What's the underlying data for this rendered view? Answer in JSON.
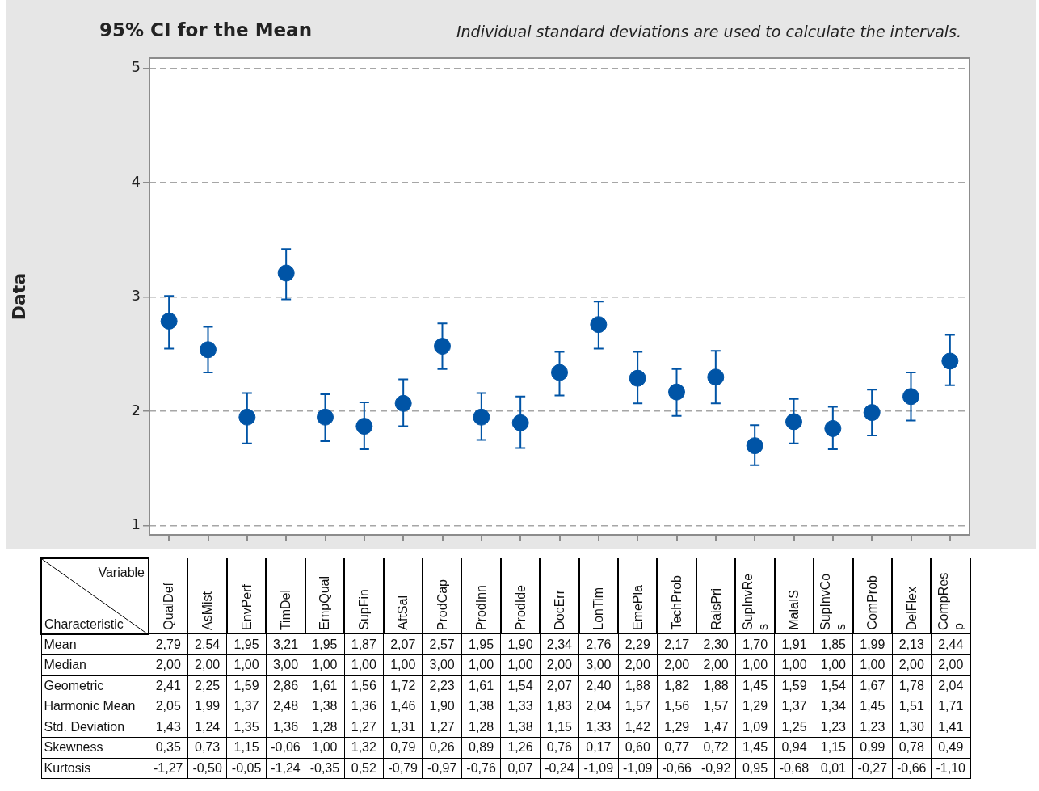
{
  "chart_data": [
    {
      "type": "scatter",
      "title": "95% CI for the Mean",
      "subtitle": "Individual standard deviations are used to calculate the intervals.",
      "ylabel": "Data",
      "categories": [
        null,
        null,
        null,
        null,
        null,
        null,
        null,
        null,
        null,
        null,
        null,
        null,
        null,
        null,
        null,
        null,
        null,
        null,
        null,
        null,
        null
      ],
      "series": [
        {
          "color": "#0054a6",
          "values": [
            2.79,
            2.54,
            1.95,
            3.21,
            1.95,
            1.87,
            2.07,
            2.57,
            1.95,
            1.9,
            2.34,
            2.76,
            2.29,
            2.17,
            2.3,
            1.7,
            1.91,
            1.85,
            1.99,
            2.13,
            2.44
          ],
          "errors": [
            [
              2.55,
              3.01
            ],
            [
              2.34,
              2.74
            ],
            [
              1.72,
              2.16
            ],
            [
              2.98,
              3.42
            ],
            [
              1.74,
              2.15
            ],
            [
              1.67,
              2.08
            ],
            [
              1.87,
              2.28
            ],
            [
              2.37,
              2.77
            ],
            [
              1.75,
              2.16
            ],
            [
              1.68,
              2.13
            ],
            [
              2.14,
              2.52
            ],
            [
              2.55,
              2.96
            ],
            [
              2.07,
              2.52
            ],
            [
              1.96,
              2.37
            ],
            [
              2.07,
              2.53
            ],
            [
              1.53,
              1.88
            ],
            [
              1.72,
              2.11
            ],
            [
              1.67,
              2.04
            ],
            [
              1.79,
              2.19
            ],
            [
              1.92,
              2.34
            ],
            [
              2.23,
              2.67
            ]
          ]
        }
      ],
      "ylim": [
        0.92,
        5.09
      ],
      "yticks": [
        1,
        2,
        3,
        4,
        5
      ],
      "grid": "y",
      "marker": "circle",
      "tick_labels": "y"
    },
    {
      "type": "other",
      "xlabel": "Variable",
      "ylabel": "Characteristic",
      "categories": [
        "QualDef",
        "AsMist",
        "EnvPerf",
        "TimDel",
        "EmpQual",
        "SupFin",
        "AftSal",
        "ProdCap",
        "ProdInn",
        "ProdIde",
        "DocErr",
        "LonTim",
        "EmePla",
        "TechProb",
        "RaisPri",
        "SupInvRes",
        "MalaIS",
        "SupInvCos",
        "ComProb",
        "DelFlex",
        "CompResp"
      ],
      "series": [
        {
          "name": "Mean",
          "values": [
            2.79,
            2.54,
            1.95,
            3.21,
            1.95,
            1.87,
            2.07,
            2.57,
            1.95,
            1.9,
            2.34,
            2.76,
            2.29,
            2.17,
            2.3,
            1.7,
            1.91,
            1.85,
            1.99,
            2.13,
            2.44
          ],
          "value_labels": [
            "2,79",
            "2,54",
            "1,95",
            "3,21",
            "1,95",
            "1,87",
            "2,07",
            "2,57",
            "1,95",
            "1,90",
            "2,34",
            "2,76",
            "2,29",
            "2,17",
            "2,30",
            "1,70",
            "1,91",
            "1,85",
            "1,99",
            "2,13",
            "2,44"
          ]
        },
        {
          "name": "Median",
          "values": [
            2,
            2,
            1,
            3,
            1,
            1,
            1,
            3,
            1,
            1,
            2,
            3,
            2,
            2,
            2,
            1,
            1,
            1,
            1,
            2,
            2
          ],
          "value_labels": [
            "2,00",
            "2,00",
            "1,00",
            "3,00",
            "1,00",
            "1,00",
            "1,00",
            "3,00",
            "1,00",
            "1,00",
            "2,00",
            "3,00",
            "2,00",
            "2,00",
            "2,00",
            "1,00",
            "1,00",
            "1,00",
            "1,00",
            "2,00",
            "2,00"
          ]
        },
        {
          "name": "Geometric",
          "values": [
            2.41,
            2.25,
            1.59,
            2.86,
            1.61,
            1.56,
            1.72,
            2.23,
            1.61,
            1.54,
            2.07,
            2.4,
            1.88,
            1.82,
            1.88,
            1.45,
            1.59,
            1.54,
            1.67,
            1.78,
            2.04
          ],
          "value_labels": [
            "2,41",
            "2,25",
            "1,59",
            "2,86",
            "1,61",
            "1,56",
            "1,72",
            "2,23",
            "1,61",
            "1,54",
            "2,07",
            "2,40",
            "1,88",
            "1,82",
            "1,88",
            "1,45",
            "1,59",
            "1,54",
            "1,67",
            "1,78",
            "2,04"
          ]
        },
        {
          "name": "Harmonic Mean",
          "values": [
            2.05,
            1.99,
            1.37,
            2.48,
            1.38,
            1.36,
            1.46,
            1.9,
            1.38,
            1.33,
            1.83,
            2.04,
            1.57,
            1.56,
            1.57,
            1.29,
            1.37,
            1.34,
            1.45,
            1.51,
            1.71
          ],
          "value_labels": [
            "2,05",
            "1,99",
            "1,37",
            "2,48",
            "1,38",
            "1,36",
            "1,46",
            "1,90",
            "1,38",
            "1,33",
            "1,83",
            "2,04",
            "1,57",
            "1,56",
            "1,57",
            "1,29",
            "1,37",
            "1,34",
            "1,45",
            "1,51",
            "1,71"
          ]
        },
        {
          "name": "Std. Deviation",
          "values": [
            1.43,
            1.24,
            1.35,
            1.36,
            1.28,
            1.27,
            1.31,
            1.27,
            1.28,
            1.38,
            1.15,
            1.33,
            1.42,
            1.29,
            1.47,
            1.09,
            1.25,
            1.23,
            1.23,
            1.3,
            1.41
          ],
          "value_labels": [
            "1,43",
            "1,24",
            "1,35",
            "1,36",
            "1,28",
            "1,27",
            "1,31",
            "1,27",
            "1,28",
            "1,38",
            "1,15",
            "1,33",
            "1,42",
            "1,29",
            "1,47",
            "1,09",
            "1,25",
            "1,23",
            "1,23",
            "1,30",
            "1,41"
          ]
        },
        {
          "name": "Skewness",
          "values": [
            0.35,
            0.73,
            1.15,
            -0.06,
            1.0,
            1.32,
            0.79,
            0.26,
            0.89,
            1.26,
            0.76,
            0.17,
            0.6,
            0.77,
            0.72,
            1.45,
            0.94,
            1.15,
            0.99,
            0.78,
            0.49
          ],
          "value_labels": [
            "0,35",
            "0,73",
            "1,15",
            "-0,06",
            "1,00",
            "1,32",
            "0,79",
            "0,26",
            "0,89",
            "1,26",
            "0,76",
            "0,17",
            "0,60",
            "0,77",
            "0,72",
            "1,45",
            "0,94",
            "1,15",
            "0,99",
            "0,78",
            "0,49"
          ]
        },
        {
          "name": "Kurtosis",
          "values": [
            -1.27,
            -0.5,
            -0.05,
            -1.24,
            -0.35,
            0.52,
            -0.79,
            -0.97,
            -0.76,
            0.07,
            -0.24,
            -1.09,
            -1.09,
            -0.66,
            -0.92,
            0.95,
            -0.68,
            0.01,
            -0.27,
            -0.66,
            -1.1
          ],
          "value_labels": [
            "-1,27",
            "-0,50",
            "-0,05",
            "-1,24",
            "-0,35",
            "0,52",
            "-0,79",
            "-0,97",
            "-0,76",
            "0,07",
            "-0,24",
            "-1,09",
            "-1,09",
            "-0,66",
            "-0,92",
            "0,95",
            "-0,68",
            "0,01",
            "-0,27",
            "-0,66",
            "-1,10"
          ]
        }
      ]
    }
  ]
}
